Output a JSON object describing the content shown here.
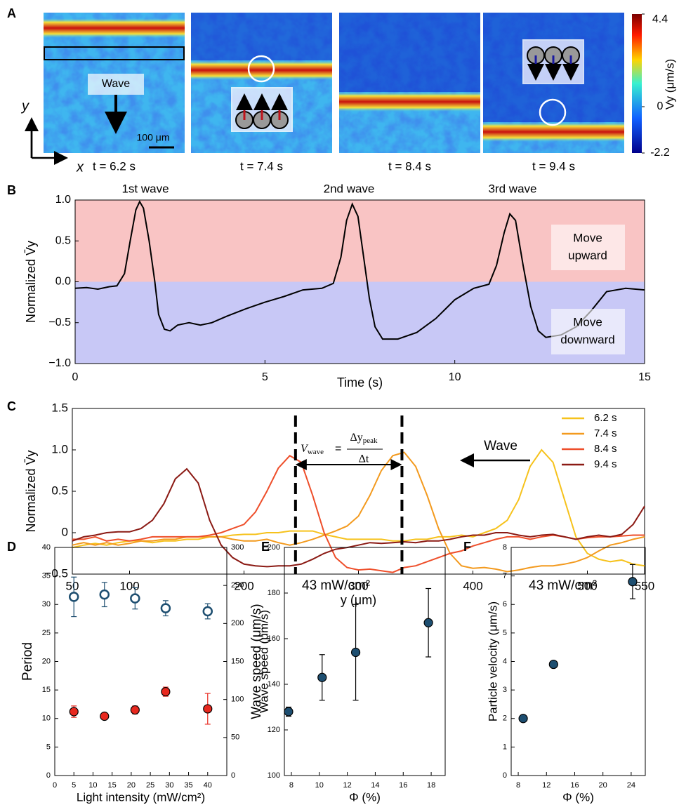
{
  "chart_data": [
    {
      "type": "heatmap",
      "panel_label": "A",
      "frames": [
        "t = 6.2 s",
        "t = 7.4 s",
        "t = 8.4 s",
        "t = 9.4 s"
      ],
      "colorbar_label": "Vy (μm/s)",
      "clim": [
        -2.2,
        4.4
      ],
      "cticks": [
        -2.2,
        0,
        4.4
      ],
      "annotations": {
        "wave": "Wave",
        "scale": "100 μm",
        "x_axis": "x",
        "y_axis": "y"
      }
    },
    {
      "type": "line",
      "panel_label": "B",
      "x": [
        0,
        0.3,
        0.6,
        0.9,
        1.1,
        1.3,
        1.45,
        1.6,
        1.7,
        1.8,
        1.95,
        2.1,
        2.2,
        2.35,
        2.5,
        2.7,
        3.0,
        3.3,
        3.6,
        4.0,
        4.5,
        5.0,
        5.5,
        6.0,
        6.5,
        6.8,
        7.0,
        7.15,
        7.3,
        7.45,
        7.6,
        7.75,
        7.9,
        8.1,
        8.5,
        9.0,
        9.5,
        10.0,
        10.5,
        10.9,
        11.1,
        11.3,
        11.45,
        11.6,
        11.8,
        12.0,
        12.2,
        12.4,
        12.8,
        13.2,
        13.6,
        14.0,
        14.5,
        15.0
      ],
      "series": [
        {
          "color": "#000000",
          "values": [
            -0.08,
            -0.07,
            -0.09,
            -0.06,
            -0.05,
            0.1,
            0.5,
            0.88,
            0.98,
            0.9,
            0.5,
            0.0,
            -0.4,
            -0.58,
            -0.6,
            -0.53,
            -0.5,
            -0.53,
            -0.5,
            -0.42,
            -0.33,
            -0.25,
            -0.18,
            -0.1,
            -0.08,
            -0.02,
            0.3,
            0.75,
            0.95,
            0.8,
            0.3,
            -0.2,
            -0.55,
            -0.7,
            -0.7,
            -0.62,
            -0.45,
            -0.22,
            -0.08,
            -0.03,
            0.2,
            0.6,
            0.83,
            0.75,
            0.2,
            -0.3,
            -0.6,
            -0.68,
            -0.65,
            -0.55,
            -0.35,
            -0.12,
            -0.08,
            -0.1
          ]
        }
      ],
      "xlim": [
        0,
        15
      ],
      "ylim": [
        -1,
        1
      ],
      "xticks": [
        0,
        5,
        10,
        15
      ],
      "yticks": [
        {
          "value": -1,
          "label": "−1.0"
        },
        {
          "value": -0.5,
          "label": "−0.5"
        },
        {
          "value": 0,
          "label": "0.0"
        },
        {
          "value": 0.5,
          "label": "0.5"
        },
        {
          "value": 1,
          "label": "1.0"
        }
      ],
      "xlabel": "Time (s)",
      "ylabel": "Normalized V̄y",
      "annotations": [
        "1st wave",
        "2nd wave",
        "3rd wave"
      ],
      "regions": [
        {
          "label": [
            "Move",
            "upward"
          ],
          "color": "#f9c4c4",
          "text_color": "#c0141c"
        },
        {
          "label": [
            "Move",
            "downward"
          ],
          "color": "#c8c8f6",
          "text_color": "#1a1a8c"
        }
      ]
    },
    {
      "type": "line",
      "panel_label": "C",
      "x": [
        50,
        60,
        70,
        80,
        90,
        100,
        110,
        120,
        130,
        140,
        150,
        160,
        170,
        180,
        190,
        200,
        210,
        220,
        230,
        240,
        250,
        260,
        270,
        280,
        290,
        300,
        310,
        320,
        330,
        340,
        350,
        360,
        370,
        380,
        390,
        400,
        410,
        420,
        430,
        440,
        450,
        460,
        470,
        480,
        490,
        500,
        510,
        520,
        530,
        540,
        550
      ],
      "series": [
        {
          "name": "6.2 s",
          "color": "#f6c21c",
          "values": [
            -0.18,
            -0.15,
            -0.13,
            -0.15,
            -0.12,
            -0.1,
            -0.1,
            -0.12,
            -0.1,
            -0.1,
            -0.08,
            -0.08,
            -0.05,
            -0.05,
            -0.03,
            -0.02,
            -0.02,
            0,
            0,
            0.02,
            0.02,
            0.02,
            -0.02,
            -0.05,
            -0.08,
            -0.08,
            -0.08,
            -0.08,
            -0.1,
            -0.1,
            -0.08,
            -0.08,
            -0.05,
            -0.05,
            -0.03,
            -0.05,
            0,
            0.05,
            0.15,
            0.4,
            0.8,
            1.0,
            0.85,
            0.4,
            -0.05,
            -0.25,
            -0.32,
            -0.35,
            -0.33,
            -0.38,
            -0.4
          ]
        },
        {
          "name": "7.4 s",
          "color": "#f39a1e",
          "values": [
            -0.15,
            -0.12,
            -0.15,
            -0.12,
            -0.15,
            -0.13,
            -0.1,
            -0.1,
            -0.08,
            -0.08,
            -0.05,
            -0.05,
            -0.05,
            -0.05,
            -0.08,
            -0.1,
            -0.1,
            -0.08,
            -0.12,
            -0.15,
            -0.12,
            -0.08,
            -0.03,
            0.02,
            0.08,
            0.2,
            0.45,
            0.75,
            0.93,
            0.97,
            0.8,
            0.45,
            0.05,
            -0.25,
            -0.4,
            -0.43,
            -0.42,
            -0.44,
            -0.47,
            -0.45,
            -0.42,
            -0.4,
            -0.4,
            -0.38,
            -0.35,
            -0.3,
            -0.22,
            -0.15,
            -0.12,
            -0.08,
            -0.05
          ]
        },
        {
          "name": "8.4 s",
          "color": "#ee4e2a",
          "values": [
            -0.08,
            -0.08,
            -0.05,
            -0.1,
            -0.08,
            -0.1,
            -0.08,
            -0.05,
            -0.05,
            -0.05,
            -0.05,
            -0.05,
            -0.03,
            0,
            0.05,
            0.1,
            0.25,
            0.5,
            0.78,
            0.93,
            0.85,
            0.45,
            0,
            -0.3,
            -0.42,
            -0.45,
            -0.44,
            -0.46,
            -0.48,
            -0.42,
            -0.4,
            -0.35,
            -0.3,
            -0.25,
            -0.22,
            -0.16,
            -0.12,
            -0.08,
            -0.05,
            -0.05,
            -0.08,
            -0.05,
            -0.03,
            -0.05,
            -0.08,
            -0.06,
            -0.05,
            -0.05,
            -0.04,
            -0.03,
            -0.03
          ]
        },
        {
          "name": "9.4 s",
          "color": "#8b1a14",
          "values": [
            -0.1,
            -0.05,
            -0.03,
            0,
            0.01,
            0.01,
            0.05,
            0.15,
            0.35,
            0.65,
            0.77,
            0.6,
            0.15,
            -0.15,
            -0.3,
            -0.38,
            -0.4,
            -0.41,
            -0.4,
            -0.4,
            -0.38,
            -0.32,
            -0.25,
            -0.2,
            -0.18,
            -0.15,
            -0.12,
            -0.13,
            -0.12,
            -0.11,
            -0.12,
            -0.1,
            -0.1,
            -0.08,
            -0.05,
            -0.03,
            -0.03,
            0,
            0,
            -0.03,
            -0.05,
            -0.03,
            -0.02,
            -0.05,
            -0.08,
            -0.05,
            -0.03,
            -0.05,
            -0.02,
            0.1,
            0.32
          ]
        }
      ],
      "xlim": [
        50,
        550
      ],
      "ylim": [
        -0.5,
        1.5
      ],
      "xticks": [
        50,
        100,
        200,
        300,
        400,
        500,
        550
      ],
      "yticks": [
        {
          "value": -0.5,
          "label": "−0.5"
        },
        0,
        0.5,
        {
          "value": 1,
          "label": "1.0"
        },
        {
          "value": 1.5,
          "label": "1.5"
        }
      ],
      "xlabel": "y (μm)",
      "ylabel": "Normalized V̄y",
      "vlines": [
        245,
        338
      ],
      "equation": {
        "lhs": "V",
        "lhs_sub": "wave",
        "num": "Δy",
        "num_sub": "peak",
        "den": "Δt"
      },
      "annotations": [
        "Wave"
      ]
    },
    {
      "type": "scatter",
      "panel_label": "D",
      "x": [
        5,
        13,
        21,
        29,
        40
      ],
      "series": [
        {
          "name": "Period",
          "color": "#e8281e",
          "fill": "#e8281e",
          "values": [
            11.2,
            10.4,
            11.5,
            14.7,
            11.7
          ],
          "errors": [
            1,
            0.5,
            0.7,
            0.8,
            2.7
          ]
        },
        {
          "name": "Wave speed (μm/s)",
          "color": "#1d4e70",
          "fill": "#ffffff",
          "axis": "y2",
          "values": [
            235,
            238,
            233,
            220,
            216
          ],
          "errors": [
            26,
            16,
            14,
            10,
            10
          ]
        }
      ],
      "xlim": [
        0,
        45
      ],
      "ylim": [
        0,
        40
      ],
      "y2lim": [
        0,
        300
      ],
      "xticks": [
        0,
        5,
        10,
        15,
        20,
        25,
        30,
        35,
        40
      ],
      "yticks": [
        0,
        5,
        10,
        15,
        20,
        25,
        30,
        35,
        40
      ],
      "y2ticks": [
        0,
        50,
        100,
        150,
        200,
        250,
        300
      ],
      "xlabel": "Light intensity (mW/cm²)"
    },
    {
      "type": "scatter",
      "panel_label": "E",
      "x": [
        7.8,
        10.2,
        12.6,
        17.8
      ],
      "series": [
        {
          "color": "#000000",
          "fill": "#1d4e70",
          "values": [
            128,
            143,
            154,
            167
          ],
          "errors": [
            2,
            10,
            21,
            15
          ]
        }
      ],
      "xlim": [
        7.5,
        19
      ],
      "ylim": [
        100,
        200
      ],
      "xticks": [
        8,
        10,
        12,
        14,
        16,
        18
      ],
      "yticks": [
        100,
        120,
        140,
        160,
        180,
        200
      ],
      "xlabel": "Φ (%)",
      "ylabel": "Wave speed (μm/s)",
      "annotations": [
        "43 mW/cm²"
      ]
    },
    {
      "type": "scatter",
      "panel_label": "F",
      "x": [
        8.7,
        13,
        24.2
      ],
      "series": [
        {
          "color": "#000000",
          "fill": "#1d4e70",
          "values": [
            2,
            3.9,
            6.8
          ],
          "errors": [
            0.1,
            0.1,
            0.6
          ]
        }
      ],
      "xlim": [
        7,
        26
      ],
      "ylim": [
        0,
        8
      ],
      "xticks": [
        8,
        12,
        16,
        20,
        24
      ],
      "yticks": [
        0,
        1,
        2,
        3,
        4,
        5,
        6,
        7,
        8
      ],
      "xlabel": "Φ (%)",
      "ylabel": "Particle velocity (μm/s)",
      "annotations": [
        "43 mW/cm²"
      ]
    }
  ]
}
